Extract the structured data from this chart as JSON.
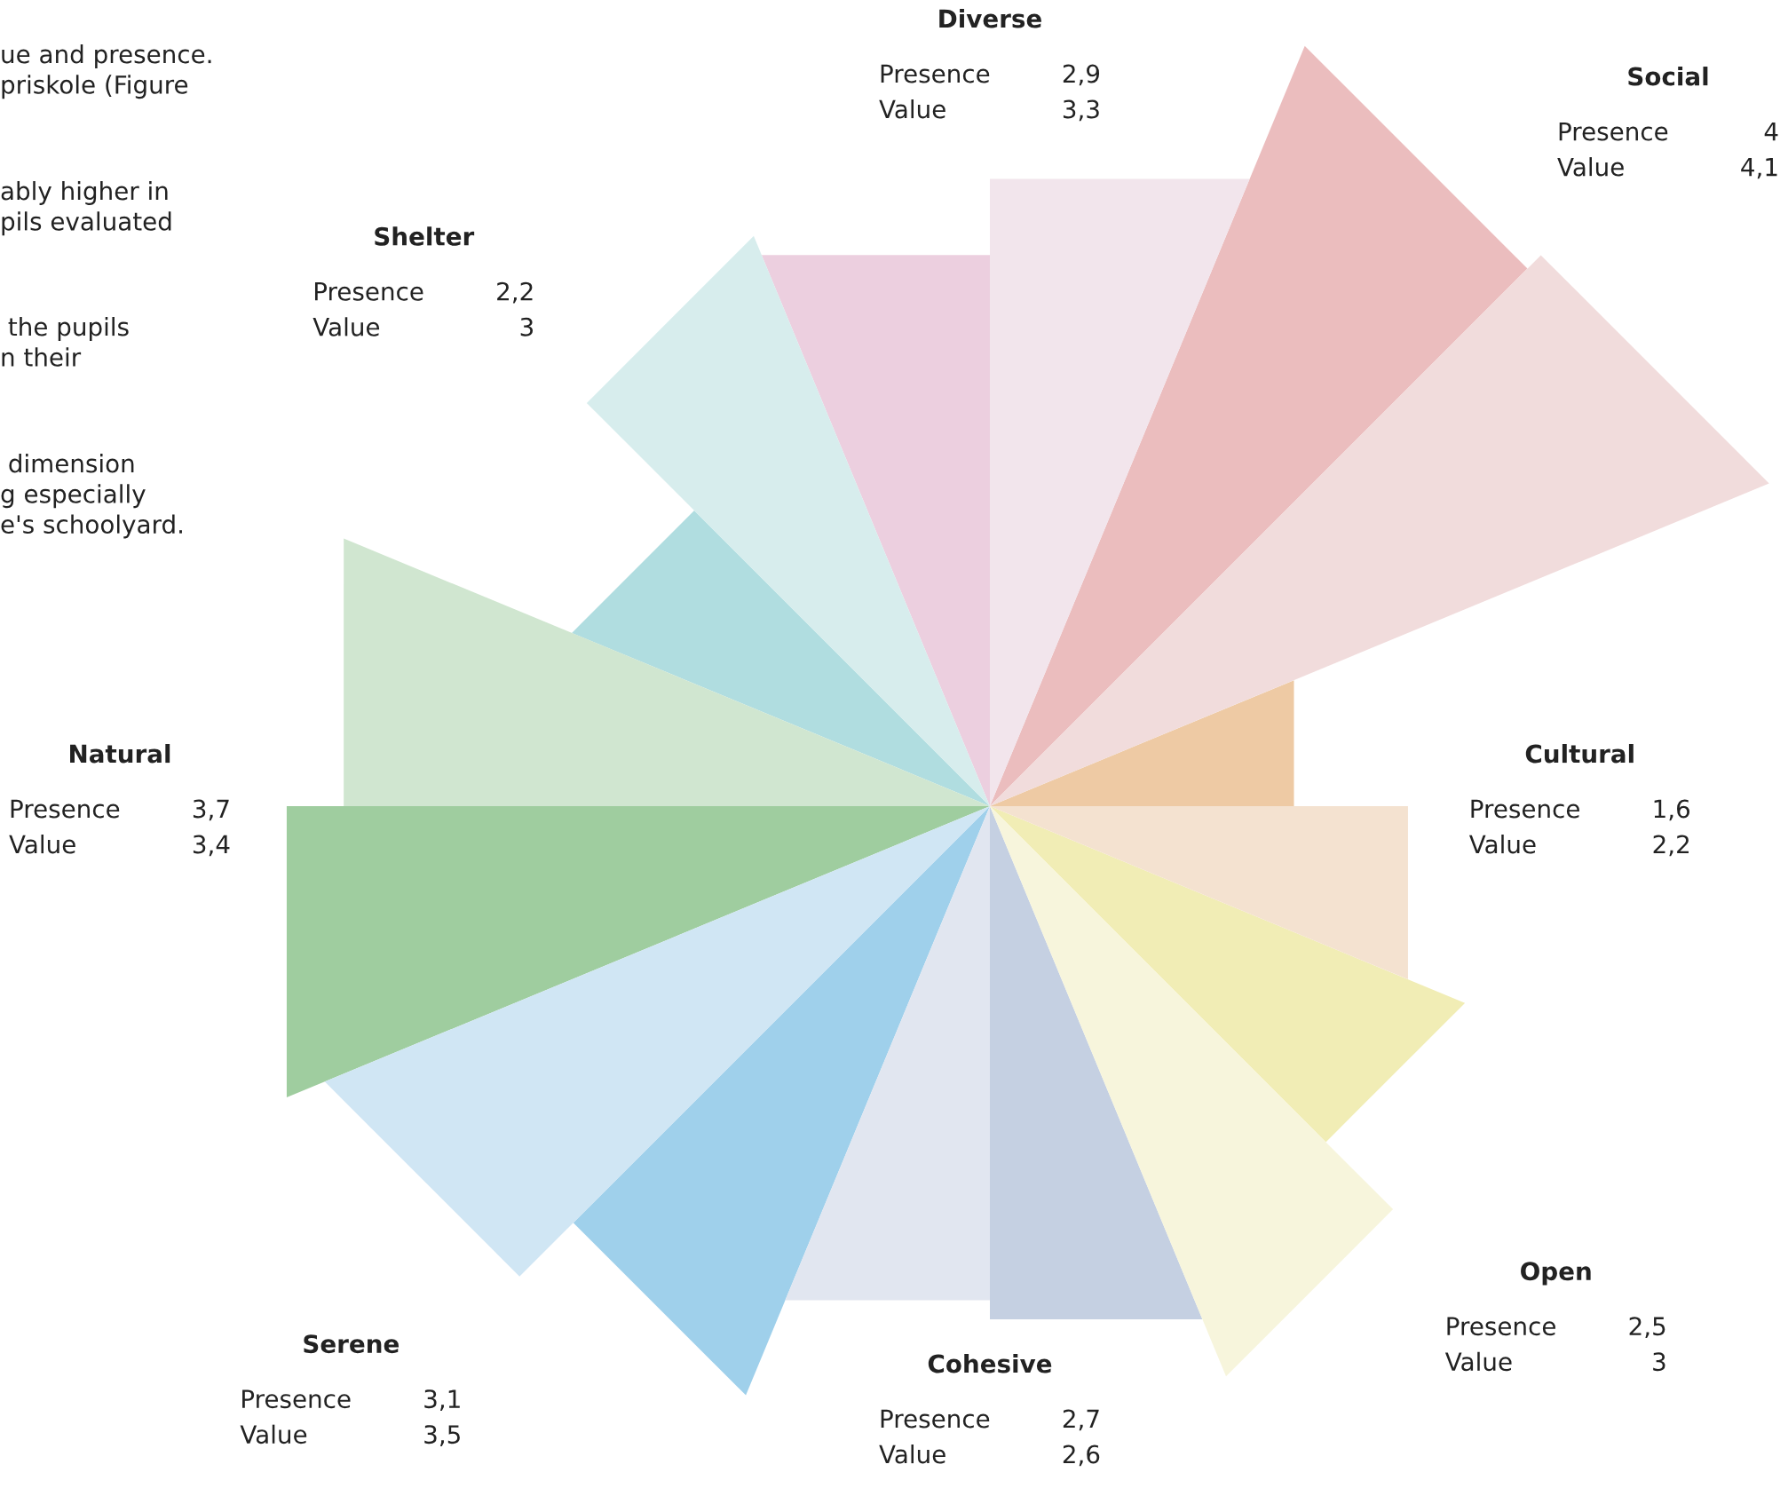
{
  "chart_data": {
    "type": "other",
    "categories": [
      "Diverse",
      "Social",
      "Cultural",
      "Open",
      "Cohesive",
      "Serene",
      "Natural",
      "Shelter"
    ],
    "series": [
      {
        "name": "Presence",
        "values": [
          2.9,
          4,
          1.6,
          2.5,
          2.7,
          3.1,
          3.7,
          2.2
        ],
        "value_labels": [
          "2,9",
          "4",
          "1,6",
          "2,5",
          "2,7",
          "3,1",
          "3,7",
          "2,2"
        ],
        "colors": [
          "#eccfdf",
          "#ebbdbe",
          "#eecaa4",
          "#f1edb5",
          "#c5d0e2",
          "#9fd0eb",
          "#9fcd9f",
          "#b0dde0"
        ]
      },
      {
        "name": "Value",
        "values": [
          3.3,
          4.1,
          2.2,
          3,
          2.6,
          3.5,
          3.4,
          3
        ],
        "value_labels": [
          "3,3",
          "4,1",
          "2,2",
          "3",
          "2,6",
          "3,5",
          "3,4",
          "3"
        ],
        "colors": [
          "#f2e5ec",
          "#f1dcdc",
          "#f4e2d0",
          "#f7f5dc",
          "#e1e6f0",
          "#d0e6f4",
          "#d0e6d0",
          "#d7eded"
        ]
      }
    ],
    "data_labels": true,
    "annotations": [
      "ue and presence.\npriskole (Figure",
      "ably higher in\npils evaluated",
      " the pupils\nn their",
      " dimension\ng especially\ne's schoolyard."
    ]
  }
}
